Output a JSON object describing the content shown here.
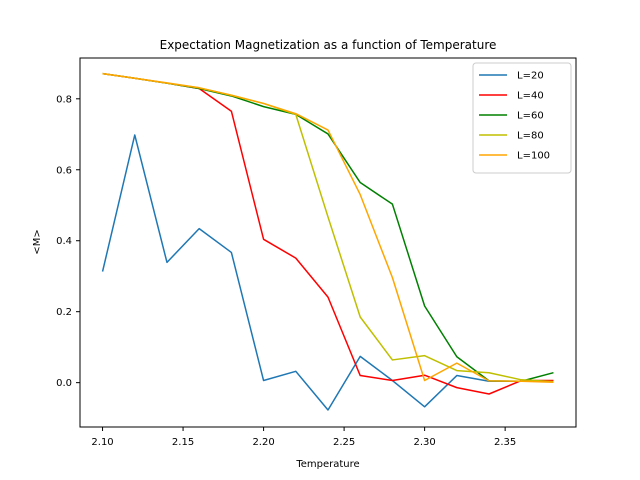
{
  "chart_data": {
    "type": "line",
    "title": "Expectation Magnetization as a function of Temperature",
    "xlabel": "Temperature",
    "ylabel": "<M>",
    "xlim": [
      2.086,
      2.394
    ],
    "ylim": [
      -0.125,
      0.915
    ],
    "xticks": [
      2.1,
      2.15,
      2.2,
      2.25,
      2.3,
      2.35
    ],
    "xtick_labels": [
      "2.10",
      "2.15",
      "2.20",
      "2.25",
      "2.30",
      "2.35"
    ],
    "yticks": [
      0.0,
      0.2,
      0.4,
      0.6,
      0.8
    ],
    "ytick_labels": [
      "0.0",
      "0.2",
      "0.4",
      "0.6",
      "0.8"
    ],
    "grid": false,
    "legend_position": "top-right",
    "x": [
      2.1,
      2.12,
      2.14,
      2.16,
      2.18,
      2.2,
      2.22,
      2.24,
      2.26,
      2.28,
      2.3,
      2.32,
      2.34,
      2.36,
      2.38
    ],
    "series": [
      {
        "name": "L=20",
        "color": "#1f77b4",
        "values": [
          0.313,
          0.698,
          0.339,
          0.434,
          0.367,
          0.006,
          0.032,
          -0.077,
          0.074,
          0.006,
          -0.068,
          0.02,
          0.004,
          0.004,
          0.005
        ]
      },
      {
        "name": "L=40",
        "color": "#ff0000",
        "values": [
          0.871,
          0.858,
          0.844,
          0.829,
          0.765,
          0.404,
          0.351,
          0.241,
          0.02,
          0.006,
          0.021,
          -0.014,
          -0.032,
          0.006,
          0.006
        ]
      },
      {
        "name": "L=60",
        "color": "#008000",
        "values": [
          0.871,
          0.858,
          0.844,
          0.829,
          0.808,
          0.778,
          0.756,
          0.701,
          0.564,
          0.503,
          0.216,
          0.073,
          0.005,
          0.004,
          0.028
        ]
      },
      {
        "name": "L=80",
        "color": "#bfbf00",
        "values": [
          0.871,
          0.858,
          0.844,
          0.831,
          0.81,
          0.787,
          0.756,
          0.467,
          0.185,
          0.064,
          0.076,
          0.034,
          0.028,
          0.008,
          0.003
        ]
      },
      {
        "name": "L=100",
        "color": "#ffa500",
        "values": [
          0.871,
          0.858,
          0.845,
          0.831,
          0.81,
          0.787,
          0.758,
          0.712,
          0.53,
          0.296,
          0.006,
          0.055,
          0.005,
          0.004,
          0.001
        ]
      }
    ]
  }
}
